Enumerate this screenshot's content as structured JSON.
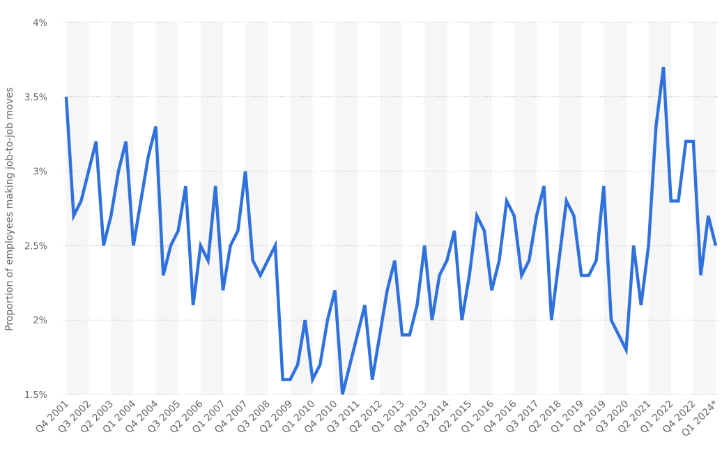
{
  "chart_data": {
    "type": "line",
    "y_label": "Proportion of employees making job-to-job moves",
    "categories": [
      "Q4 2001",
      null,
      null,
      "Q3 2002",
      null,
      null,
      "Q2 2003",
      null,
      null,
      "Q1 2004",
      null,
      null,
      "Q4 2004",
      null,
      null,
      "Q3 2005",
      null,
      null,
      "Q2 2006",
      null,
      null,
      "Q1 2007",
      null,
      null,
      "Q4 2007",
      null,
      null,
      "Q3 2008",
      null,
      null,
      "Q2 2009",
      null,
      null,
      "Q1 2010",
      null,
      null,
      "Q4 2010",
      null,
      null,
      "Q3 2011",
      null,
      null,
      "Q2 2012",
      null,
      null,
      "Q1 2013",
      null,
      null,
      "Q4 2013",
      null,
      null,
      "Q3 2014",
      null,
      null,
      "Q2 2015",
      null,
      null,
      "Q1 2016",
      null,
      null,
      "Q4 2016",
      null,
      null,
      "Q3 2017",
      null,
      null,
      "Q2 2018",
      null,
      null,
      "Q1 2019",
      null,
      null,
      "Q4 2019",
      null,
      null,
      "Q3 2020",
      null,
      null,
      "Q2 2021",
      null,
      null,
      "Q1 2022",
      null,
      null,
      "Q4 2022",
      null,
      null,
      "Q1 2024*"
    ],
    "series": [
      {
        "name": "Job-to-job moves",
        "color": "#2f72de",
        "values": [
          3.5,
          2.7,
          2.8,
          3.0,
          3.2,
          2.5,
          2.7,
          3.0,
          3.2,
          2.5,
          2.8,
          3.1,
          3.3,
          2.3,
          2.5,
          2.6,
          2.9,
          2.1,
          2.5,
          2.4,
          2.9,
          2.2,
          2.5,
          2.6,
          3.0,
          2.4,
          2.3,
          2.4,
          2.5,
          1.6,
          1.6,
          1.7,
          2.0,
          1.6,
          1.7,
          2.0,
          2.2,
          1.5,
          1.7,
          1.9,
          2.1,
          1.6,
          1.9,
          2.2,
          2.4,
          1.9,
          1.9,
          2.1,
          2.5,
          2.0,
          2.3,
          2.4,
          2.6,
          2.0,
          2.3,
          2.7,
          2.6,
          2.2,
          2.4,
          2.8,
          2.7,
          2.3,
          2.4,
          2.7,
          2.9,
          2.0,
          2.4,
          2.8,
          2.7,
          2.3,
          2.3,
          2.4,
          2.9,
          2.0,
          1.9,
          1.8,
          2.5,
          2.1,
          2.5,
          3.3,
          3.7,
          2.8,
          2.8,
          3.2,
          3.2,
          2.3,
          2.7,
          2.5
        ]
      }
    ],
    "ylim": [
      1.5,
      4
    ],
    "yticks": [
      {
        "value": 1.5,
        "label": "1.5%"
      },
      {
        "value": 2,
        "label": "2%"
      },
      {
        "value": 2.5,
        "label": "2.5%"
      },
      {
        "value": 3,
        "label": "3%"
      },
      {
        "value": 3.5,
        "label": "3.5%"
      },
      {
        "value": 4,
        "label": "4%"
      }
    ],
    "grid": true
  }
}
